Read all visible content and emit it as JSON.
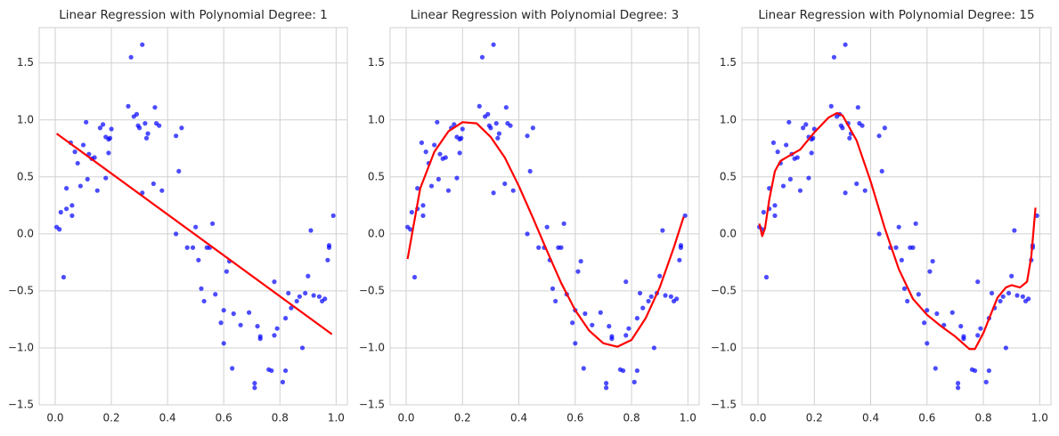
{
  "chart_data": [
    {
      "type": "scatter",
      "title": "Linear Regression with Polynomial Degree: 1",
      "points": {
        "color": "#0000ff",
        "x": [
          0.005,
          0.015,
          0.02,
          0.03,
          0.04,
          0.04,
          0.055,
          0.06,
          0.06,
          0.07,
          0.08,
          0.09,
          0.1,
          0.11,
          0.115,
          0.12,
          0.13,
          0.14,
          0.15,
          0.16,
          0.17,
          0.18,
          0.18,
          0.19,
          0.19,
          0.195,
          0.2,
          0.26,
          0.27,
          0.28,
          0.29,
          0.295,
          0.3,
          0.31,
          0.31,
          0.32,
          0.325,
          0.33,
          0.35,
          0.355,
          0.36,
          0.37,
          0.38,
          0.43,
          0.43,
          0.44,
          0.45,
          0.47,
          0.49,
          0.5,
          0.51,
          0.52,
          0.53,
          0.54,
          0.55,
          0.56,
          0.57,
          0.59,
          0.6,
          0.6,
          0.61,
          0.62,
          0.63,
          0.635,
          0.66,
          0.69,
          0.71,
          0.71,
          0.72,
          0.73,
          0.73,
          0.76,
          0.77,
          0.78,
          0.78,
          0.79,
          0.81,
          0.82,
          0.82,
          0.83,
          0.84,
          0.86,
          0.87,
          0.88,
          0.89,
          0.9,
          0.91,
          0.92,
          0.94,
          0.95,
          0.96,
          0.97,
          0.975,
          0.975,
          0.99
        ],
        "y": [
          0.06,
          0.04,
          0.19,
          -0.38,
          0.22,
          0.4,
          0.8,
          0.25,
          0.16,
          0.72,
          0.62,
          0.42,
          0.78,
          0.98,
          0.48,
          0.7,
          0.66,
          0.67,
          0.38,
          0.93,
          0.96,
          0.85,
          0.49,
          0.83,
          0.71,
          0.84,
          0.92,
          1.12,
          1.55,
          1.03,
          1.05,
          0.95,
          0.93,
          0.36,
          1.66,
          0.97,
          0.84,
          0.88,
          0.44,
          1.11,
          0.97,
          0.95,
          0.38,
          0.86,
          0.0,
          0.55,
          0.93,
          -0.12,
          -0.12,
          0.06,
          -0.23,
          -0.48,
          -0.59,
          -0.12,
          -0.12,
          0.09,
          -0.53,
          -0.78,
          -0.96,
          -0.67,
          -0.33,
          -0.24,
          -1.18,
          -0.7,
          -0.8,
          -0.69,
          -1.31,
          -1.35,
          -0.81,
          -0.9,
          -0.92,
          -1.19,
          -1.2,
          -0.42,
          -0.89,
          -0.83,
          -1.3,
          -1.2,
          -0.74,
          -0.52,
          -0.65,
          -0.59,
          -0.55,
          -1.0,
          -0.52,
          -0.37,
          0.03,
          -0.54,
          -0.55,
          -0.59,
          -0.57,
          -0.23,
          -0.1,
          -0.12,
          0.16
        ]
      },
      "fit": {
        "color": "#ff0000",
        "x": [
          0.005,
          0.985
        ],
        "y": [
          0.88,
          -0.88
        ]
      },
      "xlim": [
        -0.057,
        1.04
      ],
      "ylim": [
        -1.5,
        1.81
      ],
      "xticks": [
        {
          "value": 0,
          "label": "0.0"
        },
        0.2,
        0.4,
        0.6,
        0.8,
        {
          "value": 1,
          "label": "1.0"
        }
      ],
      "yticks": [
        {
          "value": -1.5,
          "label": "−1.5"
        },
        {
          "value": -1,
          "label": "−1.0"
        },
        {
          "value": -0.5,
          "label": "−0.5"
        },
        {
          "value": 0,
          "label": "0.0"
        },
        0.5,
        {
          "value": 1,
          "label": "1.0"
        },
        1.5
      ],
      "grid": true
    },
    {
      "type": "scatter",
      "title": "Linear Regression with Polynomial Degree: 3",
      "points": {
        "color": "#0000ff",
        "x": [
          0.005,
          0.015,
          0.02,
          0.03,
          0.04,
          0.04,
          0.055,
          0.06,
          0.06,
          0.07,
          0.08,
          0.09,
          0.1,
          0.11,
          0.115,
          0.12,
          0.13,
          0.14,
          0.15,
          0.16,
          0.17,
          0.18,
          0.18,
          0.19,
          0.19,
          0.195,
          0.2,
          0.26,
          0.27,
          0.28,
          0.29,
          0.295,
          0.3,
          0.31,
          0.31,
          0.32,
          0.325,
          0.33,
          0.35,
          0.355,
          0.36,
          0.37,
          0.38,
          0.43,
          0.43,
          0.44,
          0.45,
          0.47,
          0.49,
          0.5,
          0.51,
          0.52,
          0.53,
          0.54,
          0.55,
          0.56,
          0.57,
          0.59,
          0.6,
          0.6,
          0.61,
          0.62,
          0.63,
          0.635,
          0.66,
          0.69,
          0.71,
          0.71,
          0.72,
          0.73,
          0.73,
          0.76,
          0.77,
          0.78,
          0.78,
          0.79,
          0.81,
          0.82,
          0.82,
          0.83,
          0.84,
          0.86,
          0.87,
          0.88,
          0.89,
          0.9,
          0.91,
          0.92,
          0.94,
          0.95,
          0.96,
          0.97,
          0.975,
          0.975,
          0.99
        ],
        "y": [
          0.06,
          0.04,
          0.19,
          -0.38,
          0.22,
          0.4,
          0.8,
          0.25,
          0.16,
          0.72,
          0.62,
          0.42,
          0.78,
          0.98,
          0.48,
          0.7,
          0.66,
          0.67,
          0.38,
          0.93,
          0.96,
          0.85,
          0.49,
          0.83,
          0.71,
          0.84,
          0.92,
          1.12,
          1.55,
          1.03,
          1.05,
          0.95,
          0.93,
          0.36,
          1.66,
          0.97,
          0.84,
          0.88,
          0.44,
          1.11,
          0.97,
          0.95,
          0.38,
          0.86,
          0.0,
          0.55,
          0.93,
          -0.12,
          -0.12,
          0.06,
          -0.23,
          -0.48,
          -0.59,
          -0.12,
          -0.12,
          0.09,
          -0.53,
          -0.78,
          -0.96,
          -0.67,
          -0.33,
          -0.24,
          -1.18,
          -0.7,
          -0.8,
          -0.69,
          -1.31,
          -1.35,
          -0.81,
          -0.9,
          -0.92,
          -1.19,
          -1.2,
          -0.42,
          -0.89,
          -0.83,
          -1.3,
          -1.2,
          -0.74,
          -0.52,
          -0.65,
          -0.59,
          -0.55,
          -1.0,
          -0.52,
          -0.37,
          0.03,
          -0.54,
          -0.55,
          -0.59,
          -0.57,
          -0.23,
          -0.1,
          -0.12,
          0.16
        ]
      },
      "fit": {
        "color": "#ff0000",
        "x": [
          0.005,
          0.05,
          0.1,
          0.15,
          0.2,
          0.25,
          0.3,
          0.35,
          0.4,
          0.45,
          0.5,
          0.55,
          0.6,
          0.65,
          0.7,
          0.75,
          0.8,
          0.85,
          0.9,
          0.95,
          0.985
        ],
        "y": [
          -0.22,
          0.4,
          0.72,
          0.9,
          0.98,
          0.97,
          0.85,
          0.67,
          0.42,
          0.14,
          -0.15,
          -0.43,
          -0.67,
          -0.85,
          -0.96,
          -0.99,
          -0.93,
          -0.74,
          -0.47,
          -0.12,
          0.15
        ]
      },
      "xlim": [
        -0.057,
        1.04
      ],
      "ylim": [
        -1.5,
        1.81
      ],
      "xticks": [
        {
          "value": 0,
          "label": "0.0"
        },
        0.2,
        0.4,
        0.6,
        0.8,
        {
          "value": 1,
          "label": "1.0"
        }
      ],
      "yticks": [
        {
          "value": -1.5,
          "label": "−1.5"
        },
        {
          "value": -1,
          "label": "−1.0"
        },
        {
          "value": -0.5,
          "label": "−0.5"
        },
        {
          "value": 0,
          "label": "0.0"
        },
        0.5,
        {
          "value": 1,
          "label": "1.0"
        },
        1.5
      ],
      "grid": true
    },
    {
      "type": "scatter",
      "title": "Linear Regression with Polynomial Degree: 15",
      "points": {
        "color": "#0000ff",
        "x": [
          0.005,
          0.015,
          0.02,
          0.03,
          0.04,
          0.04,
          0.055,
          0.06,
          0.06,
          0.07,
          0.08,
          0.09,
          0.1,
          0.11,
          0.115,
          0.12,
          0.13,
          0.14,
          0.15,
          0.16,
          0.17,
          0.18,
          0.18,
          0.19,
          0.19,
          0.195,
          0.2,
          0.26,
          0.27,
          0.28,
          0.29,
          0.295,
          0.3,
          0.31,
          0.31,
          0.32,
          0.325,
          0.33,
          0.35,
          0.355,
          0.36,
          0.37,
          0.38,
          0.43,
          0.43,
          0.44,
          0.45,
          0.47,
          0.49,
          0.5,
          0.51,
          0.52,
          0.53,
          0.54,
          0.55,
          0.56,
          0.57,
          0.59,
          0.6,
          0.6,
          0.61,
          0.62,
          0.63,
          0.635,
          0.66,
          0.69,
          0.71,
          0.71,
          0.72,
          0.73,
          0.73,
          0.76,
          0.77,
          0.78,
          0.78,
          0.79,
          0.81,
          0.82,
          0.82,
          0.83,
          0.84,
          0.86,
          0.87,
          0.88,
          0.89,
          0.9,
          0.91,
          0.92,
          0.94,
          0.95,
          0.96,
          0.97,
          0.975,
          0.975,
          0.99
        ],
        "y": [
          0.06,
          0.04,
          0.19,
          -0.38,
          0.22,
          0.4,
          0.8,
          0.25,
          0.16,
          0.72,
          0.62,
          0.42,
          0.78,
          0.98,
          0.48,
          0.7,
          0.66,
          0.67,
          0.38,
          0.93,
          0.96,
          0.85,
          0.49,
          0.83,
          0.71,
          0.84,
          0.92,
          1.12,
          1.55,
          1.03,
          1.05,
          0.95,
          0.93,
          0.36,
          1.66,
          0.97,
          0.84,
          0.88,
          0.44,
          1.11,
          0.97,
          0.95,
          0.38,
          0.86,
          0.0,
          0.55,
          0.93,
          -0.12,
          -0.12,
          0.06,
          -0.23,
          -0.48,
          -0.59,
          -0.12,
          -0.12,
          0.09,
          -0.53,
          -0.78,
          -0.96,
          -0.67,
          -0.33,
          -0.24,
          -1.18,
          -0.7,
          -0.8,
          -0.69,
          -1.31,
          -1.35,
          -0.81,
          -0.9,
          -0.92,
          -1.19,
          -1.2,
          -0.42,
          -0.89,
          -0.83,
          -1.3,
          -1.2,
          -0.74,
          -0.52,
          -0.65,
          -0.59,
          -0.55,
          -1.0,
          -0.52,
          -0.37,
          0.03,
          -0.54,
          -0.55,
          -0.59,
          -0.57,
          -0.23,
          -0.1,
          -0.12,
          0.16
        ]
      },
      "fit": {
        "color": "#ff0000",
        "x": [
          0.005,
          0.015,
          0.025,
          0.04,
          0.06,
          0.08,
          0.1,
          0.15,
          0.2,
          0.25,
          0.28,
          0.3,
          0.35,
          0.4,
          0.45,
          0.5,
          0.55,
          0.6,
          0.65,
          0.7,
          0.75,
          0.77,
          0.8,
          0.85,
          0.88,
          0.9,
          0.93,
          0.955,
          0.97,
          0.985
        ],
        "y": [
          0.09,
          -0.02,
          0.05,
          0.3,
          0.55,
          0.64,
          0.67,
          0.74,
          0.89,
          1.02,
          1.06,
          1.04,
          0.82,
          0.46,
          0.05,
          -0.31,
          -0.57,
          -0.71,
          -0.81,
          -0.9,
          -1.01,
          -1.01,
          -0.87,
          -0.56,
          -0.47,
          -0.45,
          -0.47,
          -0.42,
          -0.2,
          0.23
        ]
      },
      "xlim": [
        -0.057,
        1.04
      ],
      "ylim": [
        -1.5,
        1.81
      ],
      "xticks": [
        {
          "value": 0,
          "label": "0.0"
        },
        0.2,
        0.4,
        0.6,
        0.8,
        {
          "value": 1,
          "label": "1.0"
        }
      ],
      "yticks": [
        {
          "value": -1.5,
          "label": "−1.5"
        },
        {
          "value": -1,
          "label": "−1.0"
        },
        {
          "value": -0.5,
          "label": "−0.5"
        },
        {
          "value": 0,
          "label": "0.0"
        },
        0.5,
        {
          "value": 1,
          "label": "1.0"
        },
        1.5
      ],
      "grid": true
    }
  ]
}
